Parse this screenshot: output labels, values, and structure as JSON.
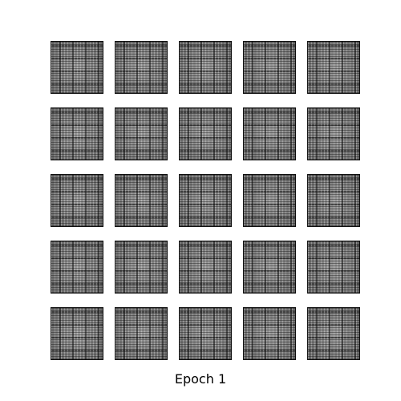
{
  "figure": {
    "caption": "Epoch 1",
    "grid_rows": 5,
    "grid_cols": 5,
    "tile_color": "#7b7b7b",
    "border_color": "#111111"
  }
}
